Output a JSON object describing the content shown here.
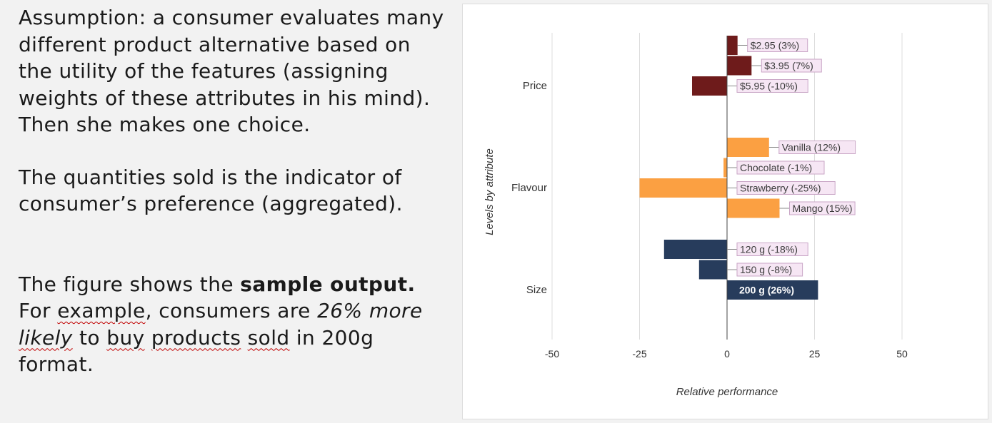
{
  "text": {
    "paragraph1": "Assumption: a consumer evaluates many different product alternative based on the utility of the features (assigning weights of these attributes in his mind). Then she makes one choice.",
    "paragraph2": "The quantities sold is the indicator of consumer’s preference (aggregated).",
    "p3_lead": "The figure shows the ",
    "p3_bold": "sample output.",
    "p3_for": "For ",
    "p3_example": "example",
    "p3_mid": ", consumers are ",
    "p3_italic_a": "26% more ",
    "p3_likely": "likely",
    "p3_to": " to ",
    "p3_buy": "buy",
    "p3_sp1": " ",
    "p3_products": "products",
    "p3_sp2": " ",
    "p3_sold": "sold",
    "p3_tail": " in 200g format."
  },
  "chart_data": {
    "type": "bar",
    "orientation": "horizontal",
    "xlabel": "Relative performance",
    "ylabel": "Levels by attribute",
    "xlim": [
      -50,
      50
    ],
    "xticks": [
      -50,
      -25,
      0,
      25,
      50
    ],
    "grid": true,
    "groups": [
      {
        "name": "Price",
        "color": "#6e1b1b",
        "bars": [
          {
            "label": "$2.95 (3%)",
            "value": 3
          },
          {
            "label": "$3.95 (7%)",
            "value": 7
          },
          {
            "label": "$5.95 (-10%)",
            "value": -10
          }
        ]
      },
      {
        "name": "Flavour",
        "color": "#fba042",
        "bars": [
          {
            "label": "Vanilla (12%)",
            "value": 12
          },
          {
            "label": "Chocolate (-1%)",
            "value": -1
          },
          {
            "label": "Strawberry (-25%)",
            "value": -25
          },
          {
            "label": "Mango (15%)",
            "value": 15
          }
        ]
      },
      {
        "name": "Size",
        "color": "#273c5c",
        "bars": [
          {
            "label": "120 g (-18%)",
            "value": -18
          },
          {
            "label": "150 g (-8%)",
            "value": -8
          },
          {
            "label": "200 g (26%)",
            "value": 26
          }
        ]
      }
    ]
  }
}
